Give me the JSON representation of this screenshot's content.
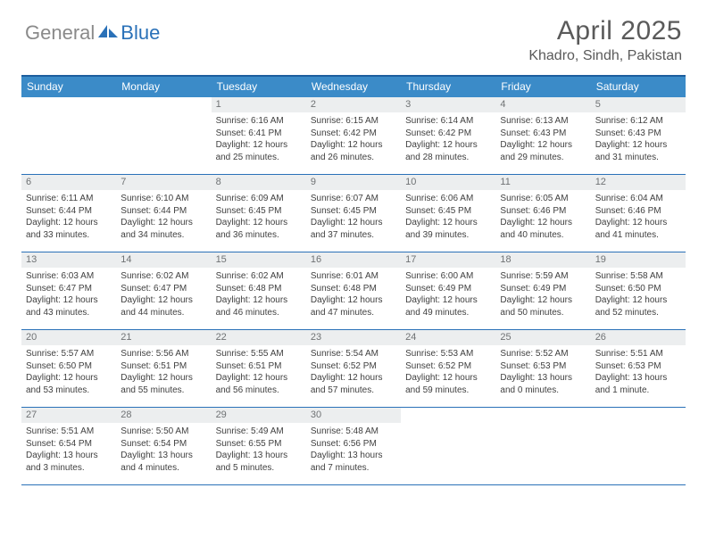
{
  "logo": {
    "gray": "General",
    "blue": "Blue"
  },
  "title": "April 2025",
  "location": "Khadro, Sindh, Pakistan",
  "colors": {
    "header_bar": "#3b8bc8",
    "border": "#2a71b8",
    "daynum_bg": "#eceeef",
    "daynum_fg": "#6f7274",
    "text": "#404040",
    "logo_gray": "#8a8a8a",
    "logo_blue": "#2a71b8"
  },
  "weekdays": [
    "Sunday",
    "Monday",
    "Tuesday",
    "Wednesday",
    "Thursday",
    "Friday",
    "Saturday"
  ],
  "weeks": [
    [
      null,
      null,
      {
        "n": "1",
        "sr": "Sunrise: 6:16 AM",
        "ss": "Sunset: 6:41 PM",
        "dl": "Daylight: 12 hours and 25 minutes."
      },
      {
        "n": "2",
        "sr": "Sunrise: 6:15 AM",
        "ss": "Sunset: 6:42 PM",
        "dl": "Daylight: 12 hours and 26 minutes."
      },
      {
        "n": "3",
        "sr": "Sunrise: 6:14 AM",
        "ss": "Sunset: 6:42 PM",
        "dl": "Daylight: 12 hours and 28 minutes."
      },
      {
        "n": "4",
        "sr": "Sunrise: 6:13 AM",
        "ss": "Sunset: 6:43 PM",
        "dl": "Daylight: 12 hours and 29 minutes."
      },
      {
        "n": "5",
        "sr": "Sunrise: 6:12 AM",
        "ss": "Sunset: 6:43 PM",
        "dl": "Daylight: 12 hours and 31 minutes."
      }
    ],
    [
      {
        "n": "6",
        "sr": "Sunrise: 6:11 AM",
        "ss": "Sunset: 6:44 PM",
        "dl": "Daylight: 12 hours and 33 minutes."
      },
      {
        "n": "7",
        "sr": "Sunrise: 6:10 AM",
        "ss": "Sunset: 6:44 PM",
        "dl": "Daylight: 12 hours and 34 minutes."
      },
      {
        "n": "8",
        "sr": "Sunrise: 6:09 AM",
        "ss": "Sunset: 6:45 PM",
        "dl": "Daylight: 12 hours and 36 minutes."
      },
      {
        "n": "9",
        "sr": "Sunrise: 6:07 AM",
        "ss": "Sunset: 6:45 PM",
        "dl": "Daylight: 12 hours and 37 minutes."
      },
      {
        "n": "10",
        "sr": "Sunrise: 6:06 AM",
        "ss": "Sunset: 6:45 PM",
        "dl": "Daylight: 12 hours and 39 minutes."
      },
      {
        "n": "11",
        "sr": "Sunrise: 6:05 AM",
        "ss": "Sunset: 6:46 PM",
        "dl": "Daylight: 12 hours and 40 minutes."
      },
      {
        "n": "12",
        "sr": "Sunrise: 6:04 AM",
        "ss": "Sunset: 6:46 PM",
        "dl": "Daylight: 12 hours and 41 minutes."
      }
    ],
    [
      {
        "n": "13",
        "sr": "Sunrise: 6:03 AM",
        "ss": "Sunset: 6:47 PM",
        "dl": "Daylight: 12 hours and 43 minutes."
      },
      {
        "n": "14",
        "sr": "Sunrise: 6:02 AM",
        "ss": "Sunset: 6:47 PM",
        "dl": "Daylight: 12 hours and 44 minutes."
      },
      {
        "n": "15",
        "sr": "Sunrise: 6:02 AM",
        "ss": "Sunset: 6:48 PM",
        "dl": "Daylight: 12 hours and 46 minutes."
      },
      {
        "n": "16",
        "sr": "Sunrise: 6:01 AM",
        "ss": "Sunset: 6:48 PM",
        "dl": "Daylight: 12 hours and 47 minutes."
      },
      {
        "n": "17",
        "sr": "Sunrise: 6:00 AM",
        "ss": "Sunset: 6:49 PM",
        "dl": "Daylight: 12 hours and 49 minutes."
      },
      {
        "n": "18",
        "sr": "Sunrise: 5:59 AM",
        "ss": "Sunset: 6:49 PM",
        "dl": "Daylight: 12 hours and 50 minutes."
      },
      {
        "n": "19",
        "sr": "Sunrise: 5:58 AM",
        "ss": "Sunset: 6:50 PM",
        "dl": "Daylight: 12 hours and 52 minutes."
      }
    ],
    [
      {
        "n": "20",
        "sr": "Sunrise: 5:57 AM",
        "ss": "Sunset: 6:50 PM",
        "dl": "Daylight: 12 hours and 53 minutes."
      },
      {
        "n": "21",
        "sr": "Sunrise: 5:56 AM",
        "ss": "Sunset: 6:51 PM",
        "dl": "Daylight: 12 hours and 55 minutes."
      },
      {
        "n": "22",
        "sr": "Sunrise: 5:55 AM",
        "ss": "Sunset: 6:51 PM",
        "dl": "Daylight: 12 hours and 56 minutes."
      },
      {
        "n": "23",
        "sr": "Sunrise: 5:54 AM",
        "ss": "Sunset: 6:52 PM",
        "dl": "Daylight: 12 hours and 57 minutes."
      },
      {
        "n": "24",
        "sr": "Sunrise: 5:53 AM",
        "ss": "Sunset: 6:52 PM",
        "dl": "Daylight: 12 hours and 59 minutes."
      },
      {
        "n": "25",
        "sr": "Sunrise: 5:52 AM",
        "ss": "Sunset: 6:53 PM",
        "dl": "Daylight: 13 hours and 0 minutes."
      },
      {
        "n": "26",
        "sr": "Sunrise: 5:51 AM",
        "ss": "Sunset: 6:53 PM",
        "dl": "Daylight: 13 hours and 1 minute."
      }
    ],
    [
      {
        "n": "27",
        "sr": "Sunrise: 5:51 AM",
        "ss": "Sunset: 6:54 PM",
        "dl": "Daylight: 13 hours and 3 minutes."
      },
      {
        "n": "28",
        "sr": "Sunrise: 5:50 AM",
        "ss": "Sunset: 6:54 PM",
        "dl": "Daylight: 13 hours and 4 minutes."
      },
      {
        "n": "29",
        "sr": "Sunrise: 5:49 AM",
        "ss": "Sunset: 6:55 PM",
        "dl": "Daylight: 13 hours and 5 minutes."
      },
      {
        "n": "30",
        "sr": "Sunrise: 5:48 AM",
        "ss": "Sunset: 6:56 PM",
        "dl": "Daylight: 13 hours and 7 minutes."
      },
      null,
      null,
      null
    ]
  ]
}
